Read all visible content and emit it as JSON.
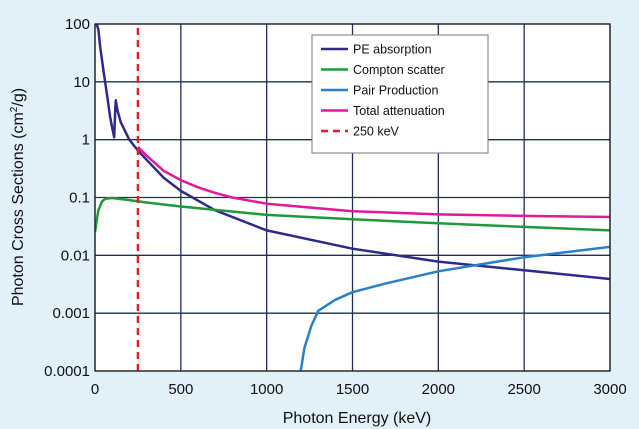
{
  "chart_data": {
    "type": "line",
    "xlabel": "Photon Energy (keV)",
    "ylabel_main": "Photon Cross Sections (cm",
    "ylabel_sup": "2",
    "ylabel_end": "/g)",
    "xlim": [
      0,
      3000
    ],
    "ylim": [
      0.0001,
      100
    ],
    "yscale": "log",
    "grid": true,
    "legend_position": "top-right",
    "x_ticks": [
      {
        "value": 0,
        "label": "0"
      },
      {
        "value": 500,
        "label": "500"
      },
      {
        "value": 1000,
        "label": "1000"
      },
      {
        "value": 1500,
        "label": "1500"
      },
      {
        "value": 2000,
        "label": "2000"
      },
      {
        "value": 2500,
        "label": "2500"
      },
      {
        "value": 3000,
        "label": "3000"
      }
    ],
    "y_ticks": [
      {
        "value": 0.0001,
        "label": "0.0001"
      },
      {
        "value": 0.001,
        "label": "0.001"
      },
      {
        "value": 0.01,
        "label": "0.01"
      },
      {
        "value": 0.1,
        "label": "0.1"
      },
      {
        "value": 1,
        "label": "1"
      },
      {
        "value": 10,
        "label": "10"
      },
      {
        "value": 100,
        "label": "100"
      }
    ],
    "series": [
      {
        "name": "PE absorption",
        "color": "#2e2a8c",
        "dash": false,
        "points": [
          [
            10,
            100
          ],
          [
            20,
            80
          ],
          [
            30,
            40
          ],
          [
            50,
            15
          ],
          [
            70,
            6
          ],
          [
            88,
            2.5
          ],
          [
            100,
            1.6
          ],
          [
            112,
            1.1
          ],
          [
            114,
            1.7
          ],
          [
            118,
            3.5
          ],
          [
            121,
            4.8
          ],
          [
            130,
            3.3
          ],
          [
            150,
            2.0
          ],
          [
            200,
            1.0
          ],
          [
            250,
            0.65
          ],
          [
            300,
            0.45
          ],
          [
            400,
            0.22
          ],
          [
            500,
            0.13
          ],
          [
            700,
            0.06
          ],
          [
            1000,
            0.027
          ],
          [
            1500,
            0.013
          ],
          [
            2000,
            0.0078
          ],
          [
            2500,
            0.0055
          ],
          [
            3000,
            0.0039
          ]
        ]
      },
      {
        "name": "Compton scatter",
        "color": "#1e9a3c",
        "dash": false,
        "points": [
          [
            0,
            0.025
          ],
          [
            10,
            0.04
          ],
          [
            20,
            0.06
          ],
          [
            40,
            0.085
          ],
          [
            60,
            0.095
          ],
          [
            100,
            0.098
          ],
          [
            200,
            0.09
          ],
          [
            300,
            0.082
          ],
          [
            500,
            0.07
          ],
          [
            1000,
            0.05
          ],
          [
            1500,
            0.042
          ],
          [
            2000,
            0.036
          ],
          [
            2500,
            0.031
          ],
          [
            3000,
            0.027
          ]
        ]
      },
      {
        "name": "Pair Production",
        "color": "#2a80c8",
        "dash": false,
        "points": [
          [
            1198,
            0.0001
          ],
          [
            1220,
            0.00025
          ],
          [
            1260,
            0.0006
          ],
          [
            1300,
            0.0011
          ],
          [
            1400,
            0.0017
          ],
          [
            1500,
            0.0023
          ],
          [
            1700,
            0.0033
          ],
          [
            2000,
            0.0053
          ],
          [
            2500,
            0.0093
          ],
          [
            3000,
            0.014
          ]
        ]
      },
      {
        "name": "Total attenuation",
        "color": "#e0189a",
        "dash": false,
        "points": [
          [
            250,
            0.75
          ],
          [
            300,
            0.53
          ],
          [
            400,
            0.29
          ],
          [
            500,
            0.2
          ],
          [
            600,
            0.15
          ],
          [
            700,
            0.12
          ],
          [
            800,
            0.1
          ],
          [
            1000,
            0.078
          ],
          [
            1500,
            0.058
          ],
          [
            2000,
            0.051
          ],
          [
            2500,
            0.048
          ],
          [
            3000,
            0.046
          ]
        ]
      },
      {
        "name": "250 keV",
        "color": "#e02020",
        "dash": true,
        "points": [
          [
            250,
            0.0001
          ],
          [
            250,
            100
          ]
        ]
      }
    ]
  }
}
